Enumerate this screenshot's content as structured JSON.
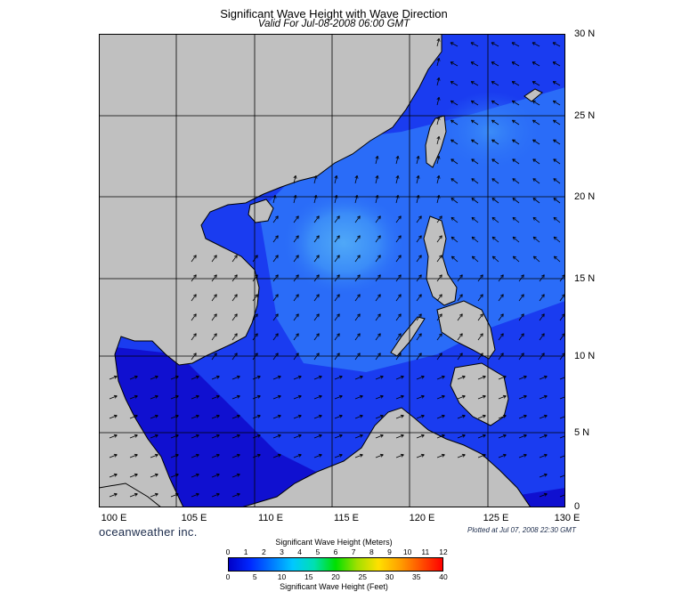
{
  "title": "Significant Wave Height with Wave Direction",
  "subtitle": "Valid For Jul-08-2008 06:00 GMT",
  "lat_labels": [
    "30 N",
    "25 N",
    "20 N",
    "15 N",
    "10 N",
    "5 N",
    "0"
  ],
  "lon_labels": [
    "100 E",
    "105 E",
    "110 E",
    "115 E",
    "120 E",
    "125 E",
    "130 E"
  ],
  "brand": "oceanweather inc.",
  "plotted": "Plotted at Jul 07, 2008 22:30 GMT",
  "colorbar": {
    "title_meters": "Significant Wave Height (Meters)",
    "title_feet": "Significant Wave Height (Feet)",
    "meters_ticks": [
      "0",
      "1",
      "2",
      "3",
      "4",
      "5",
      "6",
      "7",
      "8",
      "9",
      "10",
      "11",
      "12"
    ],
    "feet_ticks": [
      "0",
      "5",
      "10",
      "15",
      "20",
      "25",
      "30",
      "35",
      "40"
    ],
    "colors": [
      "#0000c8",
      "#0028ff",
      "#0078ff",
      "#00c8ff",
      "#00e0b0",
      "#00e000",
      "#a0e000",
      "#ffe000",
      "#ffa000",
      "#ff5000",
      "#ff0000"
    ]
  },
  "map": {
    "land_color": "#c0c0c0",
    "sea_colors": [
      "#0a0a50",
      "#1010d0",
      "#1a3cf0",
      "#2a6cf8",
      "#3b8cf8",
      "#4fa8f8"
    ]
  }
}
